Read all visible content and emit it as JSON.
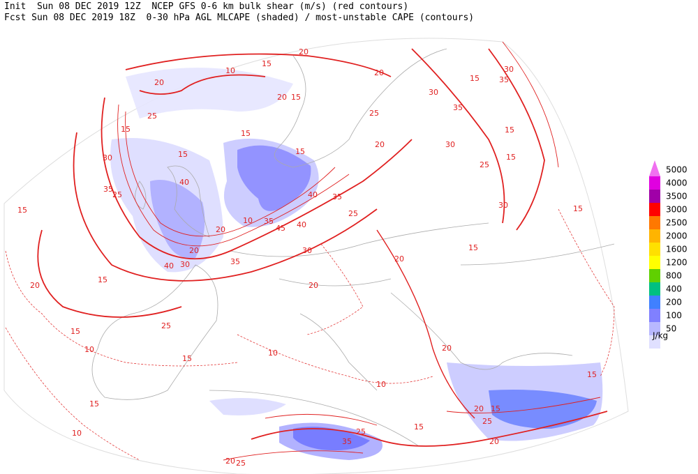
{
  "header": {
    "line1": "Init  Sun 08 DEC 2019 12Z  NCEP GFS 0-6 km bulk shear (m/s) (red contours)",
    "line2": "Fcst Sun 08 DEC 2019 18Z  0-30 hPa AGL MLCAPE (shaded) / most-unstable CAPE (contours)"
  },
  "legend": {
    "unit": "J/kg",
    "entries": [
      {
        "label": "5000",
        "color": "#f070f0"
      },
      {
        "label": "4000",
        "color": "#e000e0"
      },
      {
        "label": "3500",
        "color": "#a000a8"
      },
      {
        "label": "3000",
        "color": "#ff0000"
      },
      {
        "label": "2500",
        "color": "#ff7800"
      },
      {
        "label": "2000",
        "color": "#ffb400"
      },
      {
        "label": "1600",
        "color": "#ffe000"
      },
      {
        "label": "1200",
        "color": "#ffff00"
      },
      {
        "label": "800",
        "color": "#60d000"
      },
      {
        "label": "400",
        "color": "#00c080"
      },
      {
        "label": "200",
        "color": "#4080ff"
      },
      {
        "label": "100",
        "color": "#8080ff"
      },
      {
        "label": "50",
        "color": "#b8b8ff"
      }
    ],
    "lowest_color": "#e0e0ff"
  },
  "contour_labels": [
    20,
    15,
    10,
    20,
    15,
    30,
    35,
    20,
    30,
    20,
    15,
    25,
    15,
    35,
    15,
    25,
    15,
    30,
    15,
    20,
    30,
    15,
    15,
    40,
    25,
    35,
    40,
    35,
    25,
    30,
    15,
    15,
    25,
    10,
    35,
    45,
    20,
    40,
    20,
    30,
    35,
    40,
    30,
    15,
    20,
    20,
    15,
    20,
    25,
    15,
    10,
    15,
    10,
    20,
    10,
    15,
    20,
    15,
    25,
    15,
    20,
    35,
    25,
    20,
    25,
    15,
    10
  ]
}
